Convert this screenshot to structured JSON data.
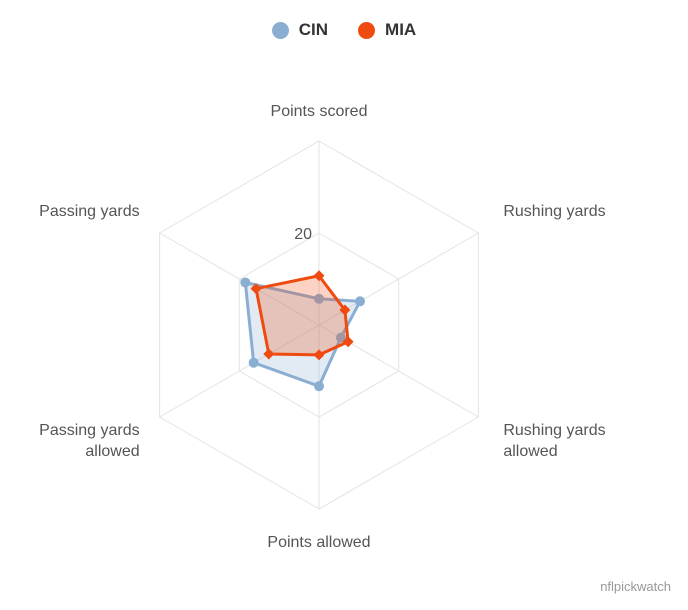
{
  "chart_data": {
    "type": "radar",
    "categories": [
      "Points scored",
      "Rushing yards",
      "Rushing yards allowed",
      "Points allowed",
      "Passing yards allowed",
      "Passing yards"
    ],
    "label_lines": [
      [
        "Points scored"
      ],
      [
        "Rushing yards"
      ],
      [
        "Rushing yards",
        "allowed"
      ],
      [
        "Points allowed"
      ],
      [
        "Passing yards",
        "allowed"
      ],
      [
        "Passing yards"
      ]
    ],
    "series": [
      {
        "name": "CIN",
        "color": "#8aaed2",
        "marker": "circle",
        "values": [
          5.7,
          10.3,
          5.5,
          13.3,
          16.4,
          18.5
        ]
      },
      {
        "name": "MIA",
        "color": "#ef4a10",
        "marker": "diamond",
        "values": [
          10.7,
          6.5,
          7.3,
          6.5,
          12.6,
          15.8
        ]
      }
    ],
    "rmax": 40,
    "ticks": [
      20
    ],
    "tick_labels": [
      "20"
    ],
    "legend_position": "top-center",
    "grid": true
  },
  "credit": "nflpickwatch"
}
